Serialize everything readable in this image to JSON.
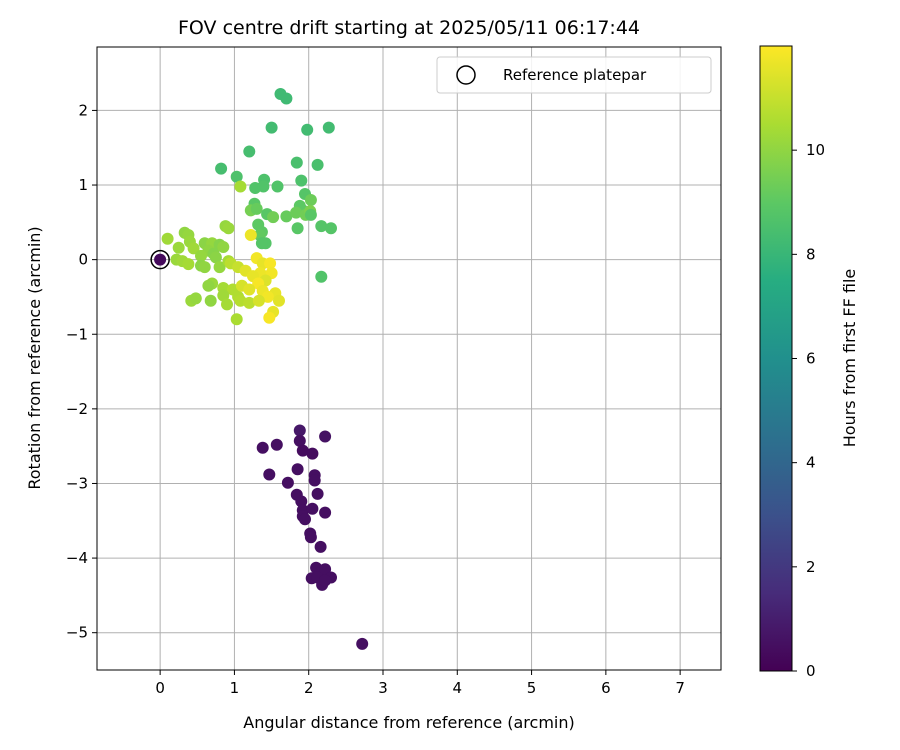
{
  "chart_data": {
    "type": "scatter",
    "title": "FOV centre drift starting at 2025/05/11 06:17:44",
    "xlabel": "Angular distance from reference (arcmin)",
    "ylabel": "Rotation from reference (arcmin)",
    "xlim": [
      -0.85,
      7.55
    ],
    "ylim": [
      -5.5,
      2.85
    ],
    "xticks": [
      0,
      1,
      2,
      3,
      4,
      5,
      6,
      7
    ],
    "yticks": [
      -5,
      -4,
      -3,
      -2,
      -1,
      0,
      1,
      2
    ],
    "grid": true,
    "legend": {
      "position": "top-right",
      "entries": [
        "Reference platepar"
      ]
    },
    "reference_point": {
      "x": 0,
      "y": 0
    },
    "colorbar": {
      "label": "Hours from first FF file",
      "range": [
        0,
        12
      ],
      "ticks": [
        0,
        2,
        4,
        6,
        8,
        10
      ],
      "colormap": "viridis"
    },
    "points": [
      {
        "x": 0.0,
        "y": 0.0,
        "h": 0.3
      },
      {
        "x": 2.72,
        "y": -5.15,
        "h": 0.5
      },
      {
        "x": 1.88,
        "y": -2.29,
        "h": 0.8
      },
      {
        "x": 2.22,
        "y": -2.37,
        "h": 0.6
      },
      {
        "x": 1.38,
        "y": -2.52,
        "h": 0.5
      },
      {
        "x": 1.57,
        "y": -2.48,
        "h": 0.5
      },
      {
        "x": 1.88,
        "y": -2.43,
        "h": 0.5
      },
      {
        "x": 1.92,
        "y": -2.56,
        "h": 0.4
      },
      {
        "x": 2.05,
        "y": -2.6,
        "h": 0.4
      },
      {
        "x": 1.47,
        "y": -2.88,
        "h": 0.5
      },
      {
        "x": 1.72,
        "y": -2.99,
        "h": 0.5
      },
      {
        "x": 1.85,
        "y": -2.81,
        "h": 0.5
      },
      {
        "x": 2.08,
        "y": -2.89,
        "h": 0.5
      },
      {
        "x": 2.08,
        "y": -2.96,
        "h": 0.5
      },
      {
        "x": 1.84,
        "y": -3.15,
        "h": 0.5
      },
      {
        "x": 2.12,
        "y": -3.14,
        "h": 0.5
      },
      {
        "x": 1.9,
        "y": -3.24,
        "h": 0.5
      },
      {
        "x": 1.92,
        "y": -3.36,
        "h": 0.5
      },
      {
        "x": 1.92,
        "y": -3.44,
        "h": 0.5
      },
      {
        "x": 2.05,
        "y": -3.34,
        "h": 0.5
      },
      {
        "x": 2.22,
        "y": -3.39,
        "h": 0.5
      },
      {
        "x": 1.95,
        "y": -3.48,
        "h": 0.5
      },
      {
        "x": 2.02,
        "y": -3.67,
        "h": 0.5
      },
      {
        "x": 2.03,
        "y": -3.72,
        "h": 0.5
      },
      {
        "x": 2.16,
        "y": -3.85,
        "h": 0.5
      },
      {
        "x": 2.1,
        "y": -4.13,
        "h": 0.5
      },
      {
        "x": 2.15,
        "y": -4.2,
        "h": 0.5
      },
      {
        "x": 2.22,
        "y": -4.15,
        "h": 0.5
      },
      {
        "x": 2.04,
        "y": -4.27,
        "h": 0.5
      },
      {
        "x": 2.12,
        "y": -4.26,
        "h": 0.5
      },
      {
        "x": 2.3,
        "y": -4.26,
        "h": 0.5
      },
      {
        "x": 2.18,
        "y": -4.36,
        "h": 0.5
      },
      {
        "x": 2.22,
        "y": -4.3,
        "h": 0.5
      },
      {
        "x": 1.62,
        "y": 2.22,
        "h": 8.2
      },
      {
        "x": 1.7,
        "y": 2.16,
        "h": 8.2
      },
      {
        "x": 1.5,
        "y": 1.77,
        "h": 8.3
      },
      {
        "x": 1.98,
        "y": 1.74,
        "h": 8.3
      },
      {
        "x": 2.27,
        "y": 1.77,
        "h": 8.3
      },
      {
        "x": 1.2,
        "y": 1.45,
        "h": 8.4
      },
      {
        "x": 0.82,
        "y": 1.22,
        "h": 8.4
      },
      {
        "x": 1.84,
        "y": 1.3,
        "h": 8.5
      },
      {
        "x": 2.12,
        "y": 1.27,
        "h": 8.5
      },
      {
        "x": 1.03,
        "y": 1.11,
        "h": 8.6
      },
      {
        "x": 1.4,
        "y": 1.07,
        "h": 8.6
      },
      {
        "x": 1.9,
        "y": 1.06,
        "h": 8.6
      },
      {
        "x": 1.28,
        "y": 0.96,
        "h": 8.7
      },
      {
        "x": 1.39,
        "y": 0.98,
        "h": 8.7
      },
      {
        "x": 1.58,
        "y": 0.98,
        "h": 8.7
      },
      {
        "x": 1.95,
        "y": 0.88,
        "h": 8.8
      },
      {
        "x": 2.03,
        "y": 0.8,
        "h": 9.3
      },
      {
        "x": 1.27,
        "y": 0.75,
        "h": 8.9
      },
      {
        "x": 1.22,
        "y": 0.66,
        "h": 9.5
      },
      {
        "x": 1.3,
        "y": 0.68,
        "h": 9.2
      },
      {
        "x": 1.44,
        "y": 0.61,
        "h": 8.9
      },
      {
        "x": 1.52,
        "y": 0.57,
        "h": 9.4
      },
      {
        "x": 1.7,
        "y": 0.58,
        "h": 9.2
      },
      {
        "x": 1.88,
        "y": 0.72,
        "h": 9.0
      },
      {
        "x": 1.92,
        "y": 0.66,
        "h": 9.0
      },
      {
        "x": 1.83,
        "y": 0.63,
        "h": 9.3
      },
      {
        "x": 1.96,
        "y": 0.6,
        "h": 9.4
      },
      {
        "x": 2.02,
        "y": 0.65,
        "h": 9.6
      },
      {
        "x": 2.03,
        "y": 0.6,
        "h": 8.9
      },
      {
        "x": 1.32,
        "y": 0.47,
        "h": 9.0
      },
      {
        "x": 1.85,
        "y": 0.42,
        "h": 8.9
      },
      {
        "x": 2.17,
        "y": 0.45,
        "h": 8.8
      },
      {
        "x": 2.3,
        "y": 0.42,
        "h": 8.8
      },
      {
        "x": 1.37,
        "y": 0.37,
        "h": 9.0
      },
      {
        "x": 1.34,
        "y": 0.33,
        "h": 9.1
      },
      {
        "x": 1.42,
        "y": 0.22,
        "h": 8.8
      },
      {
        "x": 1.37,
        "y": 0.22,
        "h": 8.8
      },
      {
        "x": 2.17,
        "y": -0.23,
        "h": 8.7
      },
      {
        "x": 1.08,
        "y": 0.98,
        "h": 10.4
      },
      {
        "x": 0.88,
        "y": 0.45,
        "h": 10.1
      },
      {
        "x": 0.92,
        "y": 0.42,
        "h": 10.2
      },
      {
        "x": 0.33,
        "y": 0.36,
        "h": 10.0
      },
      {
        "x": 0.38,
        "y": 0.33,
        "h": 10.1
      },
      {
        "x": 0.1,
        "y": 0.28,
        "h": 10.3
      },
      {
        "x": 0.4,
        "y": 0.24,
        "h": 10.2
      },
      {
        "x": 0.6,
        "y": 0.22,
        "h": 9.9
      },
      {
        "x": 0.7,
        "y": 0.22,
        "h": 10.1
      },
      {
        "x": 0.8,
        "y": 0.2,
        "h": 9.8
      },
      {
        "x": 0.85,
        "y": 0.17,
        "h": 10.0
      },
      {
        "x": 0.25,
        "y": 0.16,
        "h": 10.2
      },
      {
        "x": 0.45,
        "y": 0.15,
        "h": 10.3
      },
      {
        "x": 0.65,
        "y": 0.12,
        "h": 10.0
      },
      {
        "x": 0.72,
        "y": 0.08,
        "h": 9.8
      },
      {
        "x": 0.75,
        "y": 0.03,
        "h": 9.9
      },
      {
        "x": 0.55,
        "y": 0.05,
        "h": 10.1
      },
      {
        "x": 0.22,
        "y": 0.0,
        "h": 10.2
      },
      {
        "x": 0.3,
        "y": -0.02,
        "h": 10.3
      },
      {
        "x": 0.38,
        "y": -0.06,
        "h": 10.4
      },
      {
        "x": 0.55,
        "y": -0.08,
        "h": 9.9
      },
      {
        "x": 0.6,
        "y": -0.1,
        "h": 10.0
      },
      {
        "x": 0.8,
        "y": -0.1,
        "h": 10.1
      },
      {
        "x": 0.92,
        "y": -0.02,
        "h": 10.4
      },
      {
        "x": 0.95,
        "y": -0.05,
        "h": 10.8
      },
      {
        "x": 1.05,
        "y": -0.1,
        "h": 11.0
      },
      {
        "x": 0.7,
        "y": -0.32,
        "h": 10.2
      },
      {
        "x": 0.65,
        "y": -0.35,
        "h": 10.0
      },
      {
        "x": 0.85,
        "y": -0.38,
        "h": 10.4
      },
      {
        "x": 0.98,
        "y": -0.4,
        "h": 10.6
      },
      {
        "x": 0.42,
        "y": -0.55,
        "h": 10.2
      },
      {
        "x": 0.48,
        "y": -0.52,
        "h": 10.1
      },
      {
        "x": 0.68,
        "y": -0.55,
        "h": 10.0
      },
      {
        "x": 0.85,
        "y": -0.48,
        "h": 10.3
      },
      {
        "x": 0.9,
        "y": -0.6,
        "h": 10.4
      },
      {
        "x": 1.05,
        "y": -0.5,
        "h": 10.6
      },
      {
        "x": 1.08,
        "y": -0.55,
        "h": 10.7
      },
      {
        "x": 1.2,
        "y": -0.58,
        "h": 10.8
      },
      {
        "x": 1.03,
        "y": -0.8,
        "h": 10.5
      },
      {
        "x": 1.22,
        "y": 0.33,
        "h": 11.7
      },
      {
        "x": 1.3,
        "y": 0.02,
        "h": 11.8
      },
      {
        "x": 1.38,
        "y": -0.05,
        "h": 11.6
      },
      {
        "x": 1.48,
        "y": -0.05,
        "h": 11.9
      },
      {
        "x": 1.15,
        "y": -0.15,
        "h": 11.5
      },
      {
        "x": 1.35,
        "y": -0.18,
        "h": 11.7
      },
      {
        "x": 1.25,
        "y": -0.22,
        "h": 11.6
      },
      {
        "x": 1.5,
        "y": -0.18,
        "h": 11.8
      },
      {
        "x": 1.42,
        "y": -0.28,
        "h": 11.4
      },
      {
        "x": 1.32,
        "y": -0.32,
        "h": 11.9
      },
      {
        "x": 1.1,
        "y": -0.35,
        "h": 11.3
      },
      {
        "x": 1.2,
        "y": -0.4,
        "h": 11.5
      },
      {
        "x": 1.38,
        "y": -0.42,
        "h": 11.7
      },
      {
        "x": 1.55,
        "y": -0.45,
        "h": 11.6
      },
      {
        "x": 1.45,
        "y": -0.5,
        "h": 11.8
      },
      {
        "x": 1.6,
        "y": -0.55,
        "h": 11.5
      },
      {
        "x": 1.33,
        "y": -0.55,
        "h": 11.3
      },
      {
        "x": 1.52,
        "y": -0.7,
        "h": 11.6
      },
      {
        "x": 1.47,
        "y": -0.78,
        "h": 11.9
      }
    ]
  }
}
